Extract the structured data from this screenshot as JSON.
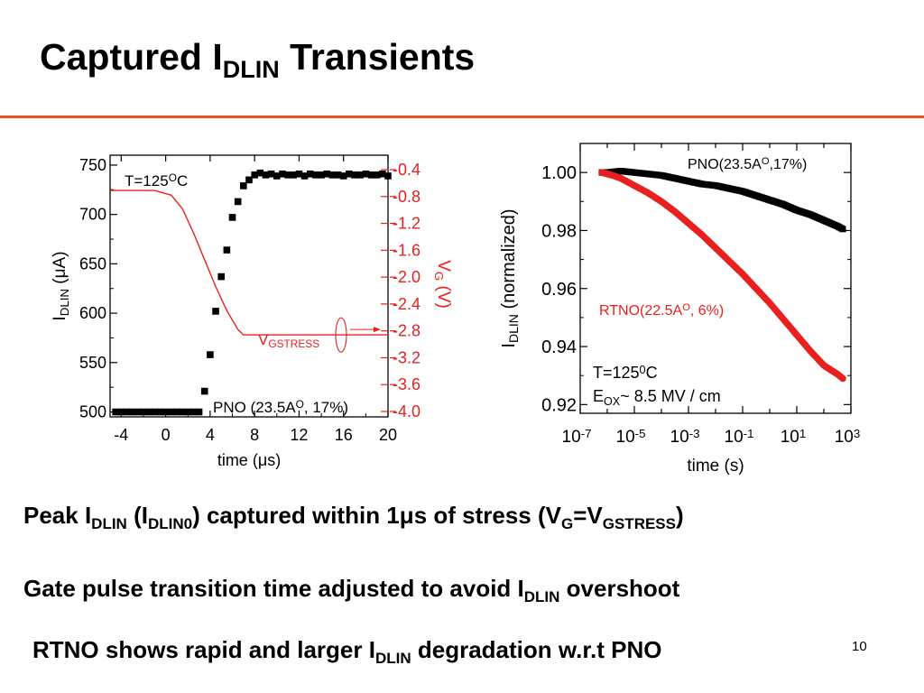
{
  "slide": {
    "title": {
      "main": "Captured I",
      "sub": "DLIN",
      "rest": " Transients"
    },
    "page_number": "10",
    "bullets": [
      [
        {
          "t": "Peak I"
        },
        {
          "s": "DLIN"
        },
        {
          "t": " (I"
        },
        {
          "s": "DLIN0"
        },
        {
          "t": ") captured within 1"
        },
        {
          "t": "μ"
        },
        {
          "t": "s of stress (V"
        },
        {
          "s": "G"
        },
        {
          "t": "=V"
        },
        {
          "s": "GSTRESS"
        },
        {
          "t": ")"
        }
      ],
      [
        {
          "t": "Gate pulse transition time adjusted to avoid I"
        },
        {
          "s": "DLIN"
        },
        {
          "t": " overshoot"
        }
      ],
      [
        {
          "t": "RTNO shows rapid and larger I"
        },
        {
          "s": "DLIN"
        },
        {
          "t": " degradation w.r.t PNO"
        }
      ]
    ]
  },
  "chart_data": [
    {
      "type": "scatter",
      "x_range": [
        -5,
        20
      ],
      "x_ticks": [
        -4,
        0,
        4,
        8,
        12,
        16,
        20
      ],
      "x_tick_labels": [
        "-4",
        "0",
        "4",
        "8",
        "12",
        "16",
        "20"
      ],
      "xlabel": {
        "pre": "time (",
        "greek": "μ",
        "post": "s)"
      },
      "left_axis": {
        "range": [
          495,
          760
        ],
        "ticks": [
          500,
          550,
          600,
          650,
          700,
          750
        ],
        "tick_labels": [
          "500",
          "550",
          "600",
          "650",
          "700",
          "750"
        ],
        "label": {
          "main": "I",
          "sub": "DLIN",
          "pre": " (",
          "greek": "μ",
          "post": "A)"
        }
      },
      "right_axis": {
        "range": [
          -4.0,
          -0.4
        ],
        "ticks": [
          -0.4,
          -0.8,
          -1.2,
          -1.6,
          -2.0,
          -2.4,
          -2.8,
          -3.2,
          -3.6,
          -4.0
        ],
        "tick_labels": [
          "-0.4",
          "-0.8",
          "-1.2",
          "-1.6",
          "-2.0",
          "-2.4",
          "-2.8",
          "-3.2",
          "-3.6",
          "-4.0"
        ],
        "label": {
          "main": "V",
          "sub": "G",
          "post": " (V)"
        },
        "color": "#e82020"
      },
      "series": [
        {
          "axis": "left",
          "color": "#000000",
          "marker": "square",
          "x": [
            -4.5,
            -4.0,
            -3.5,
            -3.0,
            -2.5,
            -2.0,
            -1.5,
            -1.0,
            -0.5,
            0.0,
            0.5,
            1.0,
            1.5,
            2.0,
            2.5,
            3.0,
            3.5,
            4.0,
            4.5,
            5.0,
            5.5,
            6.0,
            6.5,
            7.0,
            7.5,
            8.0,
            8.5,
            9.0,
            9.5,
            10.0,
            10.5,
            11.0,
            11.5,
            12.0,
            12.5,
            13.0,
            13.5,
            14.0,
            14.5,
            15.0,
            15.5,
            16.0,
            16.5,
            17.0,
            17.5,
            18.0,
            18.5,
            19.0,
            19.5,
            20.0
          ],
          "y": [
            500,
            500,
            500,
            500,
            500,
            500,
            500,
            500,
            500,
            500,
            500,
            500,
            500,
            500,
            500,
            500,
            521,
            558,
            602,
            637,
            664,
            697,
            713,
            729,
            735,
            740,
            742,
            740,
            741,
            739,
            741,
            740,
            740,
            741,
            739,
            741,
            740,
            740,
            741,
            740,
            740,
            739,
            741,
            740,
            740,
            741,
            740,
            740,
            741,
            739
          ]
        },
        {
          "axis": "right",
          "color": "#e82020",
          "marker": "line",
          "x": [
            -5,
            -1,
            0.5,
            1.5,
            2.5,
            3.5,
            4.5,
            5.5,
            6.5,
            7.0,
            20
          ],
          "y": [
            -0.71,
            -0.71,
            -0.78,
            -0.98,
            -1.34,
            -1.74,
            -2.14,
            -2.5,
            -2.78,
            -2.86,
            -2.86
          ]
        }
      ],
      "annotations": {
        "temperature": {
          "pre": "T=125",
          "sup": "O",
          "post": "C"
        },
        "device": {
          "pre": "PNO (23.5A",
          "sup": "O",
          "post": ", 17%)"
        },
        "vstress": {
          "main": "V",
          "sub": "GSTRESS"
        }
      }
    },
    {
      "type": "scatter",
      "x_scale": "log",
      "x_range": [
        1e-07,
        1000.0
      ],
      "x_ticks": [
        1e-07,
        1e-05,
        0.001,
        0.1,
        10.0,
        1000.0
      ],
      "x_tick_labels": [
        {
          "base": "10",
          "exp": "-7"
        },
        {
          "base": "10",
          "exp": "-5"
        },
        {
          "base": "10",
          "exp": "-3"
        },
        {
          "base": "10",
          "exp": "-1"
        },
        {
          "base": "10",
          "exp": "1"
        },
        {
          "base": "10",
          "exp": "3"
        }
      ],
      "xlabel": "time (s)",
      "y_range": [
        0.917,
        1.01
      ],
      "y_ticks": [
        0.92,
        0.94,
        0.96,
        0.98,
        1.0
      ],
      "y_tick_labels": [
        "0.92",
        "0.94",
        "0.96",
        "0.98",
        "1.00"
      ],
      "ylabel": {
        "main": "I",
        "sub": "DLIN",
        "post": " (normalized)"
      },
      "series": [
        {
          "name": {
            "pre": "PNO(23.5A",
            "sup": "O",
            "post": ",17%)"
          },
          "color": "#000000",
          "log_x_start": -6.2,
          "log_x_end": 2.7,
          "log_x": [
            -6.2,
            -6.0,
            -5.5,
            -5.0,
            -4.5,
            -4.0,
            -3.5,
            -3.0,
            -2.5,
            -2.0,
            -1.5,
            -1.0,
            -0.5,
            0.0,
            0.5,
            1.0,
            1.5,
            2.0,
            2.5,
            2.7
          ],
          "y": [
            1.0,
            1.0,
            1.0005,
            1.0,
            0.9995,
            0.999,
            0.998,
            0.997,
            0.996,
            0.9955,
            0.9945,
            0.9935,
            0.992,
            0.9905,
            0.989,
            0.987,
            0.9855,
            0.9835,
            0.9815,
            0.9805
          ]
        },
        {
          "name": {
            "pre": "RTNO(22.5A",
            "sup": "O",
            "post": ", 6%)"
          },
          "color": "#e82020",
          "log_x_start": -6.2,
          "log_x_end": 2.7,
          "log_x": [
            -6.2,
            -5.8,
            -5.5,
            -5.0,
            -4.5,
            -4.0,
            -3.5,
            -3.0,
            -2.5,
            -2.0,
            -1.5,
            -1.0,
            -0.5,
            0.0,
            0.5,
            1.0,
            1.5,
            2.0,
            2.5,
            2.7
          ],
          "y": [
            1.0,
            0.999,
            0.998,
            0.9955,
            0.993,
            0.99,
            0.9865,
            0.9825,
            0.9785,
            0.974,
            0.9695,
            0.965,
            0.96,
            0.955,
            0.9495,
            0.944,
            0.9385,
            0.9335,
            0.9305,
            0.929
          ]
        }
      ],
      "annotations": {
        "temperature": {
          "pre": "T=125",
          "sup": "0",
          "post": "C"
        },
        "field": {
          "main": "E",
          "sub": "OX",
          "post": "~ 8.5 MV / cm"
        }
      }
    }
  ]
}
